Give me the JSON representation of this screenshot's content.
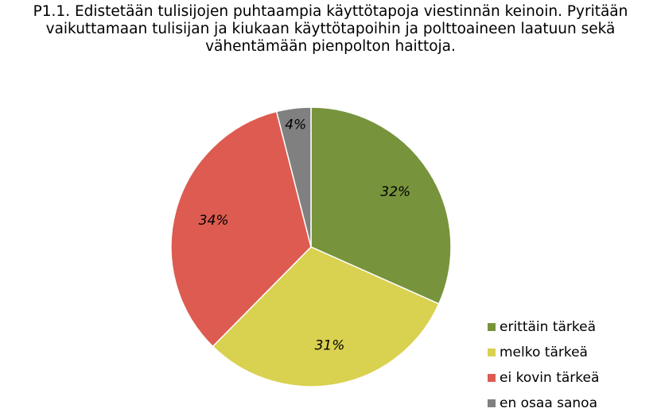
{
  "chart_data": {
    "type": "pie",
    "title_lines": [
      "P1.1. Edistetään tulisijojen puhtaampia käyttötapoja viestinnän keinoin. Pyritään",
      "vaikuttamaan tulisijan ja kiukaan käyttötapoihin ja polttoaineen laatuun sekä",
      "vähentämään pienpolton haittoja."
    ],
    "categories": [
      "erittäin tärkeä",
      "melko tärkeä",
      "ei kovin tärkeä",
      "en osaa sanoa"
    ],
    "values": [
      32,
      31,
      34,
      4
    ],
    "data_labels": [
      "32%",
      "31%",
      "34%",
      "4%"
    ],
    "colors": [
      "#77933c",
      "#d9d150",
      "#dd5b50",
      "#808080"
    ],
    "legend_position": "bottom-right"
  }
}
